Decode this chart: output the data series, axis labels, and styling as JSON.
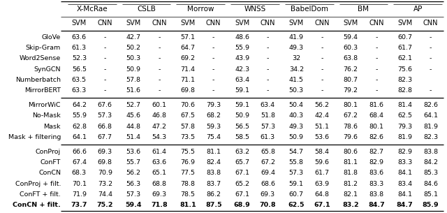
{
  "col_groups": [
    {
      "label": "X-McRae"
    },
    {
      "label": "CSLB"
    },
    {
      "label": "Morrow"
    },
    {
      "label": "WNSS"
    },
    {
      "label": "BabelDom"
    },
    {
      "label": "BM"
    },
    {
      "label": "AP"
    }
  ],
  "rows": [
    [
      "GloVe",
      "63.6",
      "-",
      "42.7",
      "-",
      "57.1",
      "-",
      "48.6",
      "-",
      "41.9",
      "-",
      "59.4",
      "-",
      "60.7",
      "-"
    ],
    [
      "Skip-Gram",
      "61.3",
      "-",
      "50.2",
      "-",
      "64.7",
      "-",
      "55.9",
      "-",
      "49.3",
      "-",
      "60.3",
      "-",
      "61.7",
      "-"
    ],
    [
      "Word2Sense",
      "52.3",
      "-",
      "50.3",
      "-",
      "69.2",
      "-",
      "43.9",
      "-",
      "32",
      "-",
      "63.8",
      "-",
      "62.1",
      "-"
    ],
    [
      "SynGCN",
      "56.5",
      "-",
      "50.9",
      "-",
      "71.4",
      "-",
      "42.3",
      "-",
      "34.2",
      "-",
      "76.2",
      "-",
      "75.6",
      "-"
    ],
    [
      "Numberbatch",
      "63.5",
      "-",
      "57.8",
      "-",
      "71.1",
      "-",
      "63.4",
      "-",
      "41.5",
      "-",
      "80.7",
      "-",
      "82.3",
      ""
    ],
    [
      "MirrorBERT",
      "63.3",
      "-",
      "51.6",
      "-",
      "69.8",
      "-",
      "59.1",
      "-",
      "50.3",
      "-",
      "79.2",
      "-",
      "82.8",
      "-"
    ],
    [
      "MirrorWiC",
      "64.2",
      "67.6",
      "52.7",
      "60.1",
      "70.6",
      "79.3",
      "59.1",
      "63.4",
      "50.4",
      "56.2",
      "80.1",
      "81.6",
      "81.4",
      "82.6"
    ],
    [
      "No-Mask",
      "55.9",
      "57.3",
      "45.6",
      "46.8",
      "67.5",
      "68.2",
      "50.9",
      "51.8",
      "40.3",
      "42.4",
      "67.2",
      "68.4",
      "62.5",
      "64.1"
    ],
    [
      "Mask",
      "62.8",
      "66.8",
      "44.8",
      "47.2",
      "57.8",
      "59.3",
      "56.5",
      "57.3",
      "49.3",
      "51.1",
      "78.6",
      "80.1",
      "79.3",
      "81.9"
    ],
    [
      "Mask + filtering",
      "64.1",
      "67.7",
      "51.4",
      "54.3",
      "73.5",
      "75.4",
      "58.5",
      "61.3",
      "50.9",
      "53.6",
      "79.6",
      "82.6",
      "81.9",
      "82.3"
    ],
    [
      "ConProj",
      "66.6",
      "69.3",
      "53.6",
      "61.4",
      "75.5",
      "81.1",
      "63.2",
      "65.8",
      "54.7",
      "58.4",
      "80.6",
      "82.7",
      "82.9",
      "83.8"
    ],
    [
      "ConFT",
      "67.4",
      "69.8",
      "55.7",
      "63.6",
      "76.9",
      "82.4",
      "65.7",
      "67.2",
      "55.8",
      "59.6",
      "81.1",
      "82.9",
      "83.3",
      "84.2"
    ],
    [
      "ConCN",
      "68.3",
      "70.9",
      "56.2",
      "65.1",
      "77.5",
      "83.8",
      "67.1",
      "69.4",
      "57.3",
      "61.7",
      "81.8",
      "83.6",
      "84.1",
      "85.3"
    ],
    [
      "ConProj + filt.",
      "70.1",
      "73.2",
      "56.3",
      "68.8",
      "78.8",
      "83.7",
      "65.2",
      "68.6",
      "59.1",
      "63.9",
      "81.2",
      "83.3",
      "83.4",
      "84.6"
    ],
    [
      "ConFT + filt.",
      "71.9",
      "74.4",
      "57.3",
      "69.3",
      "78.5",
      "86.2",
      "67.1",
      "69.3",
      "60.7",
      "64.8",
      "82.1",
      "83.8",
      "84.1",
      "85.1"
    ],
    [
      "ConCN + filt.",
      "73.7",
      "75.2",
      "59.4",
      "71.8",
      "81.1",
      "87.5",
      "68.9",
      "70.8",
      "62.5",
      "67.1",
      "83.2",
      "84.7",
      "84.7",
      "85.9"
    ]
  ],
  "bold_last_row_cols": [
    0,
    1,
    2,
    3,
    4,
    5,
    6,
    7,
    8,
    9,
    10,
    11,
    12,
    13,
    14
  ],
  "bold_morrow_last": [
    4,
    5
  ],
  "section_dividers_after": [
    5,
    9
  ],
  "fs_group": 7.5,
  "fs_sub": 7.0,
  "fs_data": 6.8,
  "fs_label": 6.8,
  "lw_thick": 0.9,
  "lw_thin": 0.5
}
